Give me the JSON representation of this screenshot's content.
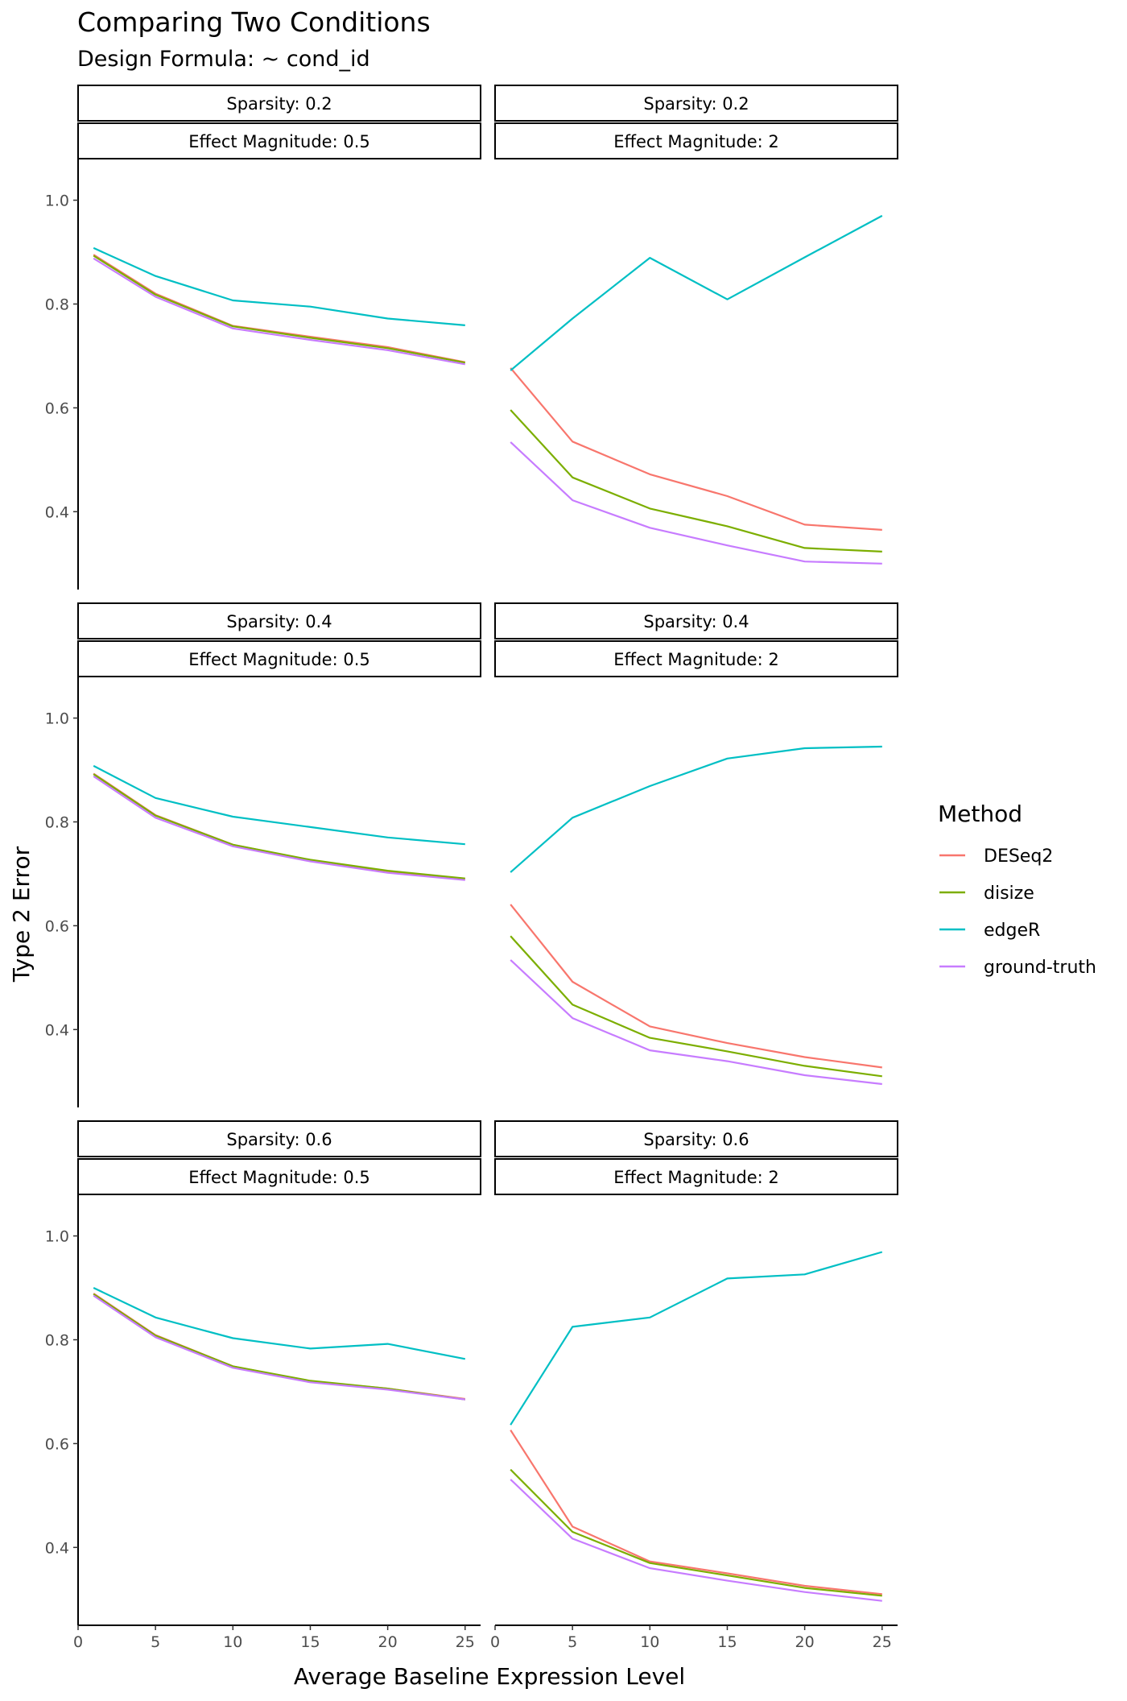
{
  "title": "Comparing Two Conditions",
  "subtitle": "Design Formula: ~ cond_id",
  "chart_data": {
    "type": "line",
    "xlabel": "Average Baseline Expression Level",
    "ylabel": "Type 2 Error",
    "x": [
      1,
      5,
      10,
      15,
      20,
      25
    ],
    "xlim": [
      0,
      26
    ],
    "ylim": [
      0.25,
      1.08
    ],
    "x_ticks": [
      0,
      5,
      10,
      15,
      20,
      25
    ],
    "y_ticks": [
      0.4,
      0.6,
      0.8,
      1.0
    ],
    "legend": {
      "title": "Method",
      "position": "right",
      "entries": [
        {
          "name": "DESeq2",
          "color": "#F8766D"
        },
        {
          "name": "disize",
          "color": "#7CAE00"
        },
        {
          "name": "edgeR",
          "color": "#00BFC4"
        },
        {
          "name": "ground-truth",
          "color": "#C77CFF"
        }
      ]
    },
    "panels": [
      {
        "strip_top": "Sparsity: 0.2",
        "strip_bottom": "Effect Magnitude: 0.5",
        "series": [
          {
            "name": "DESeq2",
            "values": [
              0.895,
              0.82,
              0.758,
              0.737,
              0.717,
              0.688
            ]
          },
          {
            "name": "disize",
            "values": [
              0.893,
              0.818,
              0.757,
              0.735,
              0.715,
              0.687
            ]
          },
          {
            "name": "edgeR",
            "values": [
              0.908,
              0.854,
              0.807,
              0.795,
              0.772,
              0.759
            ]
          },
          {
            "name": "ground-truth",
            "values": [
              0.888,
              0.814,
              0.753,
              0.731,
              0.711,
              0.684
            ]
          }
        ]
      },
      {
        "strip_top": "Sparsity: 0.2",
        "strip_bottom": "Effect Magnitude: 2",
        "series": [
          {
            "name": "DESeq2",
            "values": [
              0.677,
              0.535,
              0.472,
              0.43,
              0.375,
              0.365
            ]
          },
          {
            "name": "disize",
            "values": [
              0.596,
              0.466,
              0.406,
              0.372,
              0.33,
              0.323
            ]
          },
          {
            "name": "edgeR",
            "values": [
              0.672,
              0.772,
              0.889,
              0.809,
              0.89,
              0.97
            ]
          },
          {
            "name": "ground-truth",
            "values": [
              0.534,
              0.422,
              0.369,
              0.335,
              0.304,
              0.3
            ]
          }
        ]
      },
      {
        "strip_top": "Sparsity: 0.4",
        "strip_bottom": "Effect Magnitude: 0.5",
        "series": [
          {
            "name": "DESeq2",
            "values": [
              0.893,
              0.813,
              0.756,
              0.726,
              0.705,
              0.69
            ]
          },
          {
            "name": "disize",
            "values": [
              0.892,
              0.812,
              0.756,
              0.727,
              0.706,
              0.691
            ]
          },
          {
            "name": "edgeR",
            "values": [
              0.908,
              0.846,
              0.81,
              0.79,
              0.77,
              0.757
            ]
          },
          {
            "name": "ground-truth",
            "values": [
              0.888,
              0.808,
              0.753,
              0.724,
              0.702,
              0.688
            ]
          }
        ]
      },
      {
        "strip_top": "Sparsity: 0.4",
        "strip_bottom": "Effect Magnitude: 2",
        "series": [
          {
            "name": "DESeq2",
            "values": [
              0.641,
              0.492,
              0.406,
              0.374,
              0.347,
              0.327
            ]
          },
          {
            "name": "disize",
            "values": [
              0.58,
              0.448,
              0.384,
              0.358,
              0.33,
              0.31
            ]
          },
          {
            "name": "edgeR",
            "values": [
              0.703,
              0.808,
              0.869,
              0.922,
              0.942,
              0.945
            ]
          },
          {
            "name": "ground-truth",
            "values": [
              0.534,
              0.422,
              0.36,
              0.339,
              0.312,
              0.295
            ]
          }
        ]
      },
      {
        "strip_top": "Sparsity: 0.6",
        "strip_bottom": "Effect Magnitude: 0.5",
        "series": [
          {
            "name": "DESeq2",
            "values": [
              0.889,
              0.809,
              0.749,
              0.72,
              0.706,
              0.686
            ]
          },
          {
            "name": "disize",
            "values": [
              0.888,
              0.808,
              0.749,
              0.721,
              0.706,
              0.685
            ]
          },
          {
            "name": "edgeR",
            "values": [
              0.9,
              0.843,
              0.803,
              0.783,
              0.792,
              0.763
            ]
          },
          {
            "name": "ground-truth",
            "values": [
              0.885,
              0.805,
              0.746,
              0.718,
              0.704,
              0.685
            ]
          }
        ]
      },
      {
        "strip_top": "Sparsity: 0.6",
        "strip_bottom": "Effect Magnitude: 2",
        "series": [
          {
            "name": "DESeq2",
            "values": [
              0.626,
              0.44,
              0.373,
              0.35,
              0.326,
              0.31
            ]
          },
          {
            "name": "disize",
            "values": [
              0.55,
              0.43,
              0.37,
              0.346,
              0.322,
              0.307
            ]
          },
          {
            "name": "edgeR",
            "values": [
              0.636,
              0.825,
              0.843,
              0.918,
              0.926,
              0.969
            ]
          },
          {
            "name": "ground-truth",
            "values": [
              0.531,
              0.417,
              0.36,
              0.336,
              0.314,
              0.297
            ]
          }
        ]
      }
    ]
  }
}
